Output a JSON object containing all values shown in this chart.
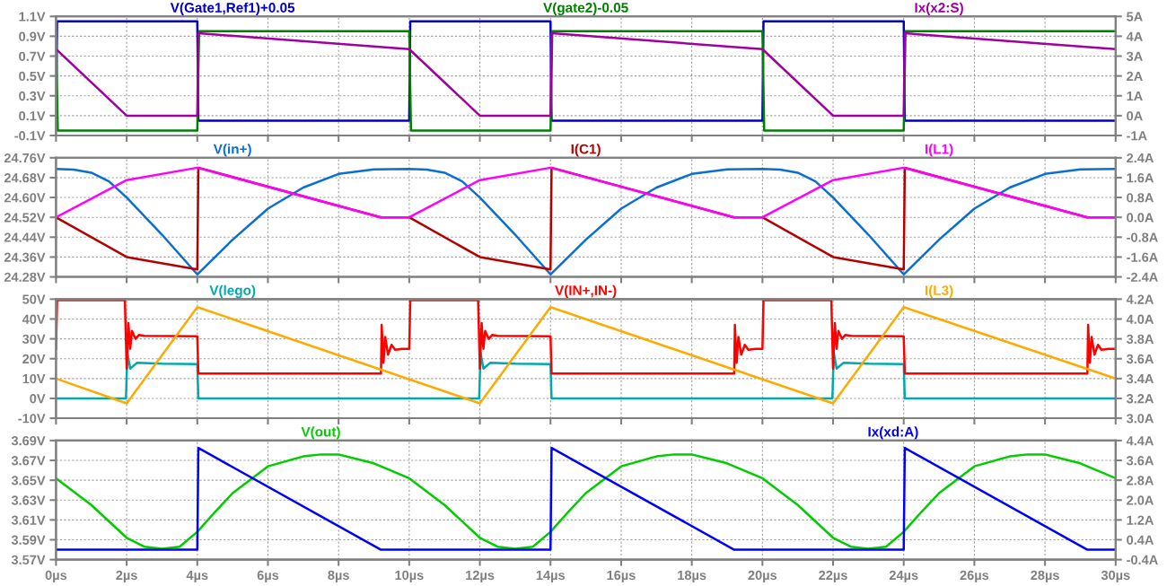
{
  "chart_data": [
    {
      "type": "line",
      "grid": true,
      "tick_labels": "y",
      "xlim": [
        0,
        30
      ],
      "xticks": [
        0,
        2,
        4,
        6,
        8,
        10,
        12,
        14,
        16,
        18,
        20,
        22,
        24,
        26,
        28,
        30
      ],
      "ylim": [
        -0.1,
        1.1
      ],
      "yticks": [
        {
          "value": -0.1,
          "label": "-0.1V"
        },
        {
          "value": 0.1,
          "label": "0.1V"
        },
        {
          "value": 0.3,
          "label": "0.3V"
        },
        {
          "value": 0.5,
          "label": "0.5V"
        },
        {
          "value": 0.7,
          "label": "0.7V"
        },
        {
          "value": 0.9,
          "label": "0.9V"
        },
        {
          "value": 1.1,
          "label": "1.1V"
        }
      ],
      "y2lim": [
        -1,
        5
      ],
      "y2ticks": [
        {
          "value": -1,
          "label": "-1A"
        },
        {
          "value": 0,
          "label": "0A"
        },
        {
          "value": 1,
          "label": "1A"
        },
        {
          "value": 2,
          "label": "2A"
        },
        {
          "value": 3,
          "label": "3A"
        },
        {
          "value": 4,
          "label": "4A"
        },
        {
          "value": 5,
          "label": "5A"
        }
      ],
      "series": [
        {
          "name": "V(Gate1,Ref1)+0.05",
          "color": "#0000c8",
          "x": [
            0,
            0.03,
            4,
            4.03,
            10,
            10.03,
            14,
            14.03,
            20,
            20.03,
            24,
            24.03,
            30
          ],
          "values": [
            0.05,
            1.05,
            1.05,
            0.05,
            0.05,
            1.05,
            1.05,
            0.05,
            0.05,
            1.05,
            1.05,
            0.05,
            0.05
          ]
        },
        {
          "name": "V(gate2)-0.05",
          "color": "#007f00",
          "x": [
            0,
            0.05,
            4,
            4.05,
            10,
            10.05,
            14,
            14.05,
            20,
            20.05,
            24,
            24.05,
            30
          ],
          "values": [
            0.95,
            -0.05,
            -0.05,
            0.95,
            0.95,
            -0.05,
            -0.05,
            0.95,
            0.95,
            -0.05,
            -0.05,
            0.95,
            0.95
          ]
        },
        {
          "name": "Ix(x2:S)",
          "color": "#a000a0",
          "axis": "y2",
          "x": [
            0,
            2,
            4,
            4.03,
            10,
            12,
            14,
            14.03,
            20,
            22,
            24,
            24.03,
            30
          ],
          "values": [
            3.35,
            0,
            0,
            4.15,
            3.35,
            0,
            0,
            4.15,
            3.35,
            0,
            0,
            4.15,
            3.35
          ]
        }
      ]
    },
    {
      "type": "line",
      "grid": true,
      "tick_labels": "y",
      "xlim": [
        0,
        30
      ],
      "xticks": [
        0,
        2,
        4,
        6,
        8,
        10,
        12,
        14,
        16,
        18,
        20,
        22,
        24,
        26,
        28,
        30
      ],
      "ylim": [
        24.28,
        24.76
      ],
      "yticks": [
        {
          "value": 24.28,
          "label": "24.28V"
        },
        {
          "value": 24.36,
          "label": "24.36V"
        },
        {
          "value": 24.44,
          "label": "24.44V"
        },
        {
          "value": 24.52,
          "label": "24.52V"
        },
        {
          "value": 24.6,
          "label": "24.60V"
        },
        {
          "value": 24.68,
          "label": "24.68V"
        },
        {
          "value": 24.76,
          "label": "24.76V"
        }
      ],
      "y2lim": [
        -2.4,
        2.4
      ],
      "y2ticks": [
        {
          "value": -2.4,
          "label": "-2.4A"
        },
        {
          "value": -1.6,
          "label": "-1.6A"
        },
        {
          "value": -0.8,
          "label": "-0.8A"
        },
        {
          "value": 0,
          "label": "0.0A"
        },
        {
          "value": 0.8,
          "label": "0.8A"
        },
        {
          "value": 1.6,
          "label": "1.6A"
        },
        {
          "value": 2.4,
          "label": "2.4A"
        }
      ],
      "series": [
        {
          "name": "V(in+)",
          "color": "#0a6ed2",
          "x": [
            0,
            0.5,
            1,
            1.5,
            2,
            3,
            4,
            5,
            6,
            7,
            8,
            9,
            10,
            10.5,
            11,
            11.5,
            12,
            13,
            14,
            15,
            16,
            17,
            18,
            19,
            20,
            20.5,
            21,
            21.5,
            22,
            23,
            24,
            25,
            26,
            27,
            28,
            29,
            30
          ],
          "values": [
            24.715,
            24.712,
            24.7,
            24.665,
            24.6,
            24.45,
            24.29,
            24.43,
            24.555,
            24.64,
            24.695,
            24.713,
            24.715,
            24.712,
            24.7,
            24.665,
            24.6,
            24.45,
            24.29,
            24.43,
            24.555,
            24.64,
            24.695,
            24.713,
            24.715,
            24.712,
            24.7,
            24.665,
            24.6,
            24.45,
            24.29,
            24.43,
            24.555,
            24.64,
            24.695,
            24.713,
            24.715
          ]
        },
        {
          "name": "I(C1)",
          "color": "#b40000",
          "axis": "y2",
          "x": [
            0,
            2,
            4,
            4.03,
            9.2,
            10,
            12,
            14,
            14.03,
            19.2,
            20,
            22,
            24,
            24.03,
            29.2,
            30
          ],
          "values": [
            0,
            -1.6,
            -2.1,
            2.0,
            0,
            0,
            -1.6,
            -2.1,
            2.0,
            0,
            0,
            -1.6,
            -2.1,
            2.0,
            0,
            0
          ]
        },
        {
          "name": "I(L1)",
          "color": "#ff00ff",
          "axis": "y2",
          "x": [
            0,
            2,
            4,
            9.2,
            10,
            12,
            14,
            19.2,
            20,
            22,
            24,
            29.2,
            30
          ],
          "values": [
            0,
            1.5,
            2.0,
            0,
            0,
            1.5,
            2.0,
            0,
            0,
            1.5,
            2.0,
            0,
            0
          ]
        }
      ]
    },
    {
      "type": "line",
      "grid": true,
      "tick_labels": "y",
      "xlim": [
        0,
        30
      ],
      "xticks": [
        0,
        2,
        4,
        6,
        8,
        10,
        12,
        14,
        16,
        18,
        20,
        22,
        24,
        26,
        28,
        30
      ],
      "ylim": [
        -10,
        50
      ],
      "yticks": [
        {
          "value": -10,
          "label": "-10V"
        },
        {
          "value": 0,
          "label": "0V"
        },
        {
          "value": 10,
          "label": "10V"
        },
        {
          "value": 20,
          "label": "20V"
        },
        {
          "value": 30,
          "label": "30V"
        },
        {
          "value": 40,
          "label": "40V"
        },
        {
          "value": 50,
          "label": "50V"
        }
      ],
      "y2lim": [
        3.0,
        4.2
      ],
      "y2ticks": [
        {
          "value": 3.0,
          "label": "3.0A"
        },
        {
          "value": 3.2,
          "label": "3.2A"
        },
        {
          "value": 3.4,
          "label": "3.4A"
        },
        {
          "value": 3.6,
          "label": "3.6A"
        },
        {
          "value": 3.8,
          "label": "3.8A"
        },
        {
          "value": 4.0,
          "label": "4.0A"
        },
        {
          "value": 4.2,
          "label": "4.2A"
        }
      ],
      "series": [
        {
          "name": "V(lego)",
          "color": "#00aaaa",
          "x": [
            0,
            1.98,
            2.02,
            2.1,
            2.3,
            3,
            4,
            4.03,
            11.98,
            12.02,
            12.1,
            12.3,
            13,
            14,
            14.03,
            21.98,
            22.02,
            22.1,
            22.3,
            23,
            24,
            24.03,
            30
          ],
          "values": [
            0,
            0,
            23,
            15,
            18,
            17.5,
            17.3,
            0,
            0,
            23,
            15,
            18,
            17.5,
            17.3,
            0,
            0,
            23,
            15,
            18,
            17.5,
            17.3,
            0,
            0
          ]
        },
        {
          "name": "V(IN+,IN-)",
          "color": "#ff0000",
          "x": [
            0,
            0.03,
            1.95,
            2.0,
            2.05,
            2.1,
            2.15,
            2.25,
            2.35,
            2.5,
            4.0,
            4.03,
            9.2,
            9.22,
            9.27,
            9.32,
            9.4,
            9.5,
            9.6,
            9.8,
            10,
            10.03,
            11.95,
            12.0,
            12.05,
            12.1,
            12.15,
            12.25,
            12.35,
            12.5,
            14.0,
            14.03,
            19.2,
            19.22,
            19.27,
            19.32,
            19.4,
            19.5,
            19.6,
            19.8,
            20,
            20.03,
            21.95,
            22.0,
            22.05,
            22.1,
            22.15,
            22.25,
            22.35,
            22.5,
            24.0,
            24.03,
            29.2,
            29.22,
            29.27,
            29.32,
            29.4,
            29.5,
            29.6,
            29.8,
            30
          ],
          "values": [
            25,
            49.5,
            49.5,
            15,
            38,
            25,
            34,
            30,
            32,
            31.5,
            31.3,
            12.5,
            12.5,
            37,
            18,
            31,
            22,
            27,
            24.5,
            25,
            25,
            49.5,
            49.5,
            15,
            38,
            25,
            34,
            30,
            32,
            31.5,
            31.3,
            12.5,
            12.5,
            37,
            18,
            31,
            22,
            27,
            24.5,
            25,
            25,
            49.5,
            49.5,
            15,
            38,
            25,
            34,
            30,
            32,
            31.5,
            31.3,
            12.5,
            12.5,
            37,
            18,
            31,
            22,
            27,
            24.5,
            25,
            25
          ]
        },
        {
          "name": "I(L3)",
          "color": "#ffaa00",
          "axis": "y2",
          "x": [
            0,
            2,
            4,
            12,
            14,
            22,
            24,
            30
          ],
          "values": [
            3.4,
            3.15,
            4.12,
            3.15,
            4.12,
            3.15,
            4.12,
            3.4
          ]
        }
      ]
    },
    {
      "type": "line",
      "grid": true,
      "xlim": [
        0,
        30
      ],
      "xticks": [
        {
          "value": 0,
          "label": "0µs"
        },
        {
          "value": 2,
          "label": "2µs"
        },
        {
          "value": 4,
          "label": "4µs"
        },
        {
          "value": 6,
          "label": "6µs"
        },
        {
          "value": 8,
          "label": "8µs"
        },
        {
          "value": 10,
          "label": "10µs"
        },
        {
          "value": 12,
          "label": "12µs"
        },
        {
          "value": 14,
          "label": "14µs"
        },
        {
          "value": 16,
          "label": "16µs"
        },
        {
          "value": 18,
          "label": "18µs"
        },
        {
          "value": 20,
          "label": "20µs"
        },
        {
          "value": 22,
          "label": "22µs"
        },
        {
          "value": 24,
          "label": "24µs"
        },
        {
          "value": 26,
          "label": "26µs"
        },
        {
          "value": 28,
          "label": "28µs"
        },
        {
          "value": 30,
          "label": "30µs"
        }
      ],
      "ylim": [
        3.57,
        3.69
      ],
      "yticks": [
        {
          "value": 3.57,
          "label": "3.57V"
        },
        {
          "value": 3.59,
          "label": "3.59V"
        },
        {
          "value": 3.61,
          "label": "3.61V"
        },
        {
          "value": 3.63,
          "label": "3.63V"
        },
        {
          "value": 3.65,
          "label": "3.65V"
        },
        {
          "value": 3.67,
          "label": "3.67V"
        },
        {
          "value": 3.69,
          "label": "3.69V"
        }
      ],
      "y2lim": [
        -0.4,
        4.4
      ],
      "y2ticks": [
        {
          "value": -0.4,
          "label": "-0.4A"
        },
        {
          "value": 0.4,
          "label": "0.4A"
        },
        {
          "value": 1.2,
          "label": "1.2A"
        },
        {
          "value": 2.0,
          "label": "2.0A"
        },
        {
          "value": 2.8,
          "label": "2.8A"
        },
        {
          "value": 3.6,
          "label": "3.6A"
        },
        {
          "value": 4.4,
          "label": "4.4A"
        }
      ],
      "series": [
        {
          "name": "V(out)",
          "color": "#00cc00",
          "x": [
            0,
            1,
            2,
            2.5,
            3,
            3.5,
            4,
            4.5,
            5,
            6,
            7,
            7.5,
            8,
            9,
            10,
            11,
            12,
            12.5,
            13,
            13.5,
            14,
            14.5,
            15,
            16,
            17,
            17.5,
            18,
            19,
            20,
            21,
            22,
            22.5,
            23,
            23.5,
            24,
            24.5,
            25,
            26,
            27,
            27.5,
            28,
            29,
            30
          ],
          "values": [
            3.652,
            3.625,
            3.592,
            3.583,
            3.581,
            3.583,
            3.598,
            3.618,
            3.637,
            3.664,
            3.674,
            3.676,
            3.676,
            3.667,
            3.652,
            3.625,
            3.592,
            3.583,
            3.581,
            3.583,
            3.598,
            3.618,
            3.637,
            3.664,
            3.674,
            3.676,
            3.676,
            3.667,
            3.652,
            3.625,
            3.592,
            3.583,
            3.581,
            3.583,
            3.598,
            3.618,
            3.637,
            3.664,
            3.674,
            3.676,
            3.676,
            3.667,
            3.652
          ]
        },
        {
          "name": "Ix(xd:A)",
          "color": "#0000ff",
          "axis": "y2",
          "x": [
            0,
            4,
            4.03,
            9.2,
            14,
            14.03,
            19.2,
            24,
            24.03,
            29.2,
            30
          ],
          "values": [
            0,
            0,
            4.1,
            0,
            0,
            4.1,
            0,
            0,
            4.1,
            0,
            0
          ]
        }
      ]
    }
  ]
}
